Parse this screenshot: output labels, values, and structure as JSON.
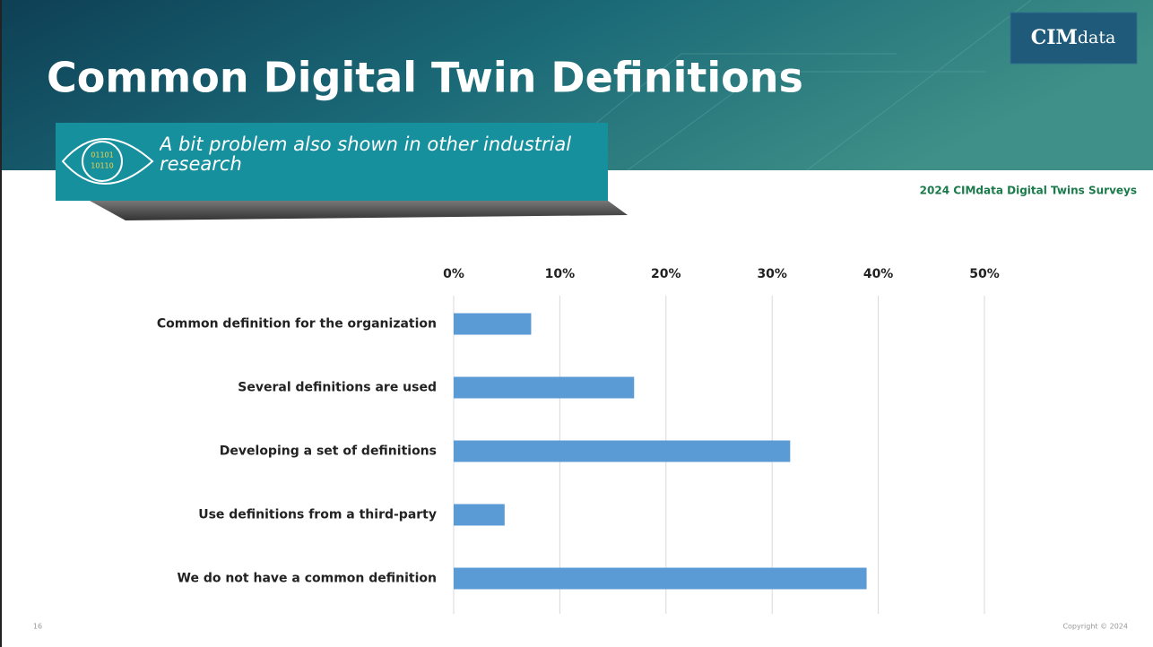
{
  "slide": {
    "title": "Common Digital Twin Definitions",
    "callout": "A bit problem also shown in other industrial research",
    "icon_text": [
      "01101",
      "10110"
    ],
    "logo": {
      "bold": "CIM",
      "rest": "data"
    },
    "source": "2024 CIMdata Digital Twins Surveys",
    "page_number": "16",
    "copyright": "Copyright © 2024"
  },
  "chart_data": {
    "type": "hbar",
    "categories": [
      "Common definition for the organization",
      "Several definitions are used",
      "Developing a set of definitions",
      "Use definitions from a third-party",
      "We do not have a common definition"
    ],
    "values": [
      7.3,
      17.0,
      31.7,
      4.8,
      38.9
    ],
    "color": "#5b9bd5",
    "xlim": [
      0,
      50
    ],
    "xticks": [
      {
        "value": 0,
        "label": "0%"
      },
      {
        "value": 10,
        "label": "10%"
      },
      {
        "value": 20,
        "label": "20%"
      },
      {
        "value": 30,
        "label": "30%"
      },
      {
        "value": 40,
        "label": "40%"
      },
      {
        "value": 50,
        "label": "50%"
      }
    ],
    "grid": true
  }
}
